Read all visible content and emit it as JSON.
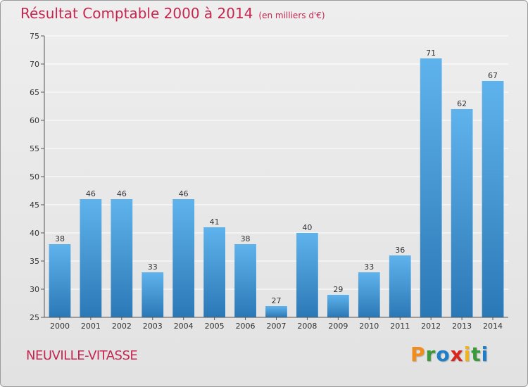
{
  "header": {
    "title": "Résultat Comptable 2000 à 2014",
    "subtitle": "(en milliers d'€)"
  },
  "footer": {
    "commune": "NEUVILLE-VITASSE",
    "brand": "Proxiti"
  },
  "colors": {
    "title": "#c4264f",
    "bar_light": "#5aaee8",
    "bar_dark": "#2a7ab8",
    "grid": "#ffffff",
    "axis_text": "#333333"
  },
  "chart_data": {
    "type": "bar",
    "title": "Résultat Comptable 2000 à 2014",
    "xlabel": "",
    "ylabel": "",
    "ylim": [
      25,
      75
    ],
    "yticks": [
      25,
      30,
      35,
      40,
      45,
      50,
      55,
      60,
      65,
      70,
      75
    ],
    "grid": true,
    "categories": [
      "2000",
      "2001",
      "2002",
      "2003",
      "2004",
      "2005",
      "2006",
      "2007",
      "2008",
      "2009",
      "2010",
      "2011",
      "2012",
      "2013",
      "2014"
    ],
    "values": [
      38,
      46,
      46,
      33,
      46,
      41,
      38,
      27,
      40,
      29,
      33,
      36,
      71,
      62,
      67
    ]
  }
}
